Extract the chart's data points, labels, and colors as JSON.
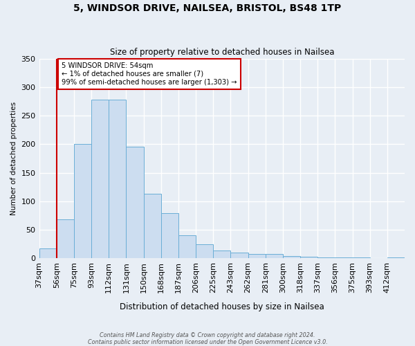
{
  "title": "5, WINDSOR DRIVE, NAILSEA, BRISTOL, BS48 1TP",
  "subtitle": "Size of property relative to detached houses in Nailsea",
  "xlabel": "Distribution of detached houses by size in Nailsea",
  "ylabel": "Number of detached properties",
  "bin_labels": [
    "37sqm",
    "56sqm",
    "75sqm",
    "93sqm",
    "112sqm",
    "131sqm",
    "150sqm",
    "168sqm",
    "187sqm",
    "206sqm",
    "225sqm",
    "243sqm",
    "262sqm",
    "281sqm",
    "300sqm",
    "318sqm",
    "337sqm",
    "356sqm",
    "375sqm",
    "393sqm",
    "412sqm"
  ],
  "bin_values": [
    17,
    68,
    200,
    278,
    278,
    195,
    113,
    79,
    40,
    25,
    14,
    10,
    7,
    7,
    4,
    3,
    2,
    1,
    1,
    0,
    2
  ],
  "bar_color": "#ccddf0",
  "bar_edge_color": "#6aaed6",
  "highlight_color": "#cc0000",
  "annotation_text": "5 WINDSOR DRIVE: 54sqm\n← 1% of detached houses are smaller (7)\n99% of semi-detached houses are larger (1,303) →",
  "annotation_box_color": "#ffffff",
  "annotation_box_edge": "#cc0000",
  "footer1": "Contains HM Land Registry data © Crown copyright and database right 2024.",
  "footer2": "Contains public sector information licensed under the Open Government Licence v3.0.",
  "ylim": [
    0,
    350
  ],
  "yticks": [
    0,
    50,
    100,
    150,
    200,
    250,
    300,
    350
  ],
  "background_color": "#e8eef5"
}
